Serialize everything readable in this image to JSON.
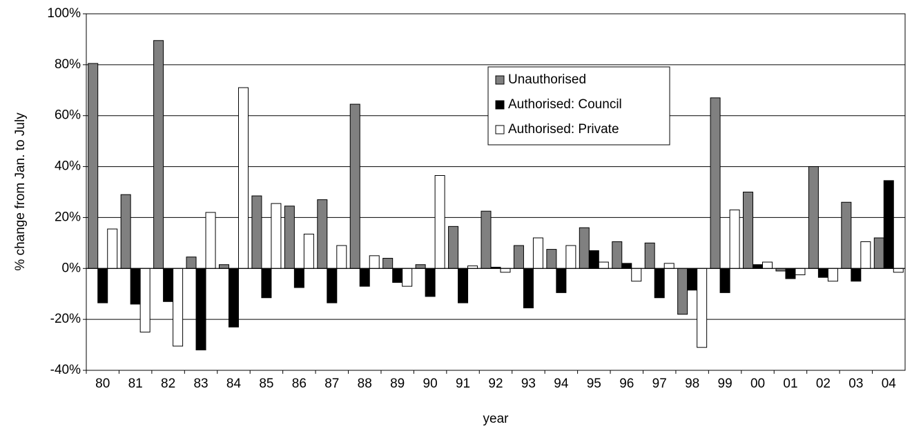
{
  "chart_data": {
    "type": "bar",
    "y_label": "% change from Jan. to July",
    "x_label": "year",
    "categories": [
      "80",
      "81",
      "82",
      "83",
      "84",
      "85",
      "86",
      "87",
      "88",
      "89",
      "90",
      "91",
      "92",
      "93",
      "94",
      "95",
      "96",
      "97",
      "98",
      "99",
      "00",
      "01",
      "02",
      "03",
      "04"
    ],
    "series": [
      {
        "name": "Unauthorised",
        "color": "#808080",
        "values": [
          80.5,
          29,
          89.5,
          4.5,
          1.5,
          28.5,
          24.5,
          27,
          64.5,
          4,
          1.5,
          16.5,
          22.5,
          9,
          7.5,
          16,
          10.5,
          10,
          -18,
          67,
          30,
          -1,
          40,
          26,
          12
        ]
      },
      {
        "name": "Authorised: Council",
        "color": "#000000",
        "values": [
          -13.5,
          -14,
          -13,
          -32,
          -23,
          -11.5,
          -7.5,
          -13.5,
          -7,
          -5.5,
          -11,
          -13.5,
          0.5,
          -15.5,
          -9.5,
          7,
          2,
          -11.5,
          -8.5,
          -9.5,
          1.5,
          -4,
          -3.5,
          -5,
          34.5
        ]
      },
      {
        "name": "Authorised: Private",
        "color": "#ffffff",
        "values": [
          15.5,
          -25,
          -30.5,
          22,
          71,
          25.5,
          13.5,
          9,
          5,
          -7,
          36.5,
          1,
          -1.5,
          12,
          9,
          2.5,
          -5,
          2,
          -31,
          23,
          2.5,
          -2.5,
          -5,
          10.5,
          -1.5
        ]
      }
    ],
    "ylim": [
      -40,
      100
    ],
    "yticks": [
      {
        "value": -40,
        "label": "-40%"
      },
      {
        "value": -20,
        "label": "-20%"
      },
      {
        "value": 0,
        "label": "0%"
      },
      {
        "value": 20,
        "label": "20%"
      },
      {
        "value": 40,
        "label": "40%"
      },
      {
        "value": 60,
        "label": "60%"
      },
      {
        "value": 80,
        "label": "80%"
      },
      {
        "value": 100,
        "label": "100%"
      }
    ],
    "grid": true
  }
}
